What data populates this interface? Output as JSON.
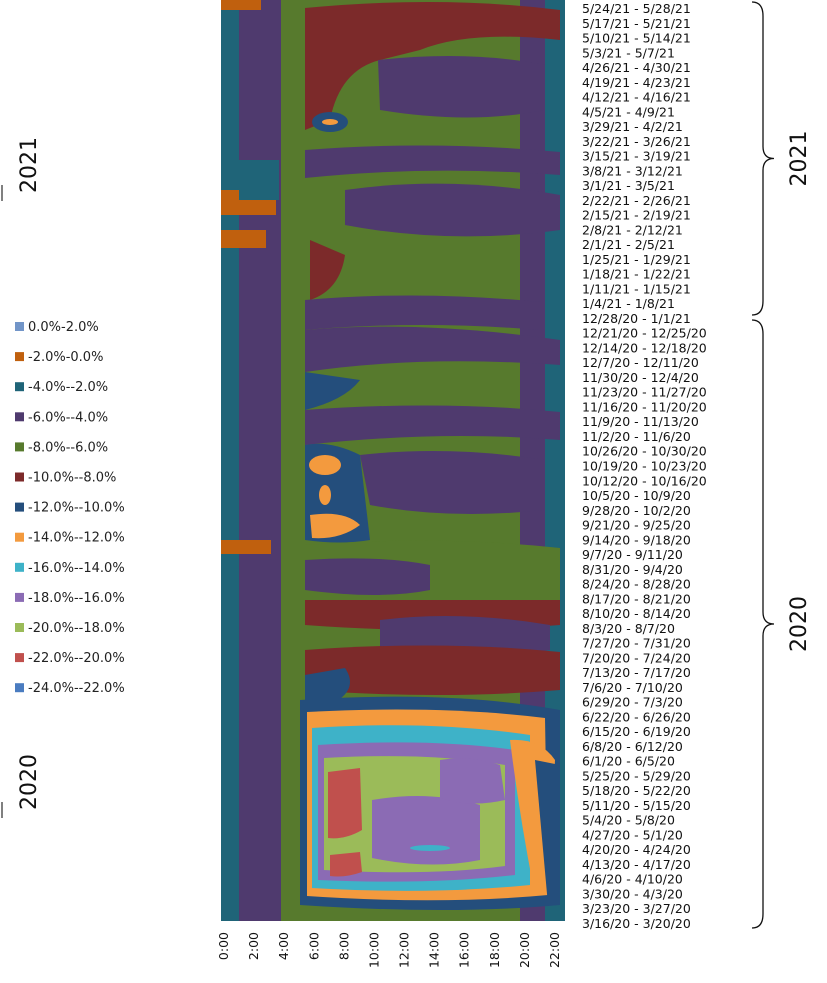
{
  "chart_data": {
    "type": "heatmap",
    "title": "",
    "xlabel": "",
    "ylabel": "",
    "x_ticks": [
      "0:00",
      "2:00",
      "4:00",
      "6:00",
      "8:00",
      "10:00",
      "12:00",
      "14:00",
      "16:00",
      "18:00",
      "20:00",
      "22:00"
    ],
    "y_ticks": [
      "5/24/21 - 5/28/21",
      "5/17/21 - 5/21/21",
      "5/10/21 - 5/14/21",
      "5/3/21 - 5/7/21",
      "4/26/21 - 4/30/21",
      "4/19/21 - 4/23/21",
      "4/12/21 - 4/16/21",
      "4/5/21 - 4/9/21",
      "3/29/21 - 4/2/21",
      "3/22/21 - 3/26/21",
      "3/15/21 - 3/19/21",
      "3/8/21 - 3/12/21",
      "3/1/21 - 3/5/21",
      "2/22/21 - 2/26/21",
      "2/15/21 - 2/19/21",
      "2/8/21 - 2/12/21",
      "2/1/21 - 2/5/21",
      "1/25/21 - 1/29/21",
      "1/18/21 - 1/22/21",
      "1/11/21 - 1/15/21",
      "1/4/21 - 1/8/21",
      "12/28/20 - 1/1/21",
      "12/21/20 - 12/25/20",
      "12/14/20 - 12/18/20",
      "12/7/20 - 12/11/20",
      "11/30/20 - 12/4/20",
      "11/23/20 - 11/27/20",
      "11/16/20 - 11/20/20",
      "11/9/20 - 11/13/20",
      "11/2/20 - 11/6/20",
      "10/26/20 - 10/30/20",
      "10/19/20 - 10/23/20",
      "10/12/20 - 10/16/20",
      "10/5/20 - 10/9/20",
      "9/28/20 - 10/2/20",
      "9/21/20 - 9/25/20",
      "9/14/20 - 9/18/20",
      "9/7/20 - 9/11/20",
      "8/31/20 - 9/4/20",
      "8/24/20 - 8/28/20",
      "8/17/20 - 8/21/20",
      "8/10/20 - 8/14/20",
      "8/3/20 - 8/7/20",
      "7/27/20 - 7/31/20",
      "7/20/20 - 7/24/20",
      "7/13/20 - 7/17/20",
      "7/6/20 - 7/10/20",
      "6/29/20 - 7/3/20",
      "6/22/20 - 6/26/20",
      "6/15/20 - 6/19/20",
      "6/8/20 - 6/12/20",
      "6/1/20 - 6/5/20",
      "5/25/20 - 5/29/20",
      "5/18/20 - 5/22/20",
      "5/11/20 - 5/15/20",
      "5/4/20 - 5/8/20",
      "4/27/20 - 5/1/20",
      "4/20/20 - 4/24/20",
      "4/13/20 - 4/17/20",
      "4/6/20 - 4/10/20",
      "3/30/20 - 4/3/20",
      "3/23/20 - 3/27/20",
      "3/16/20 - 3/20/20"
    ],
    "legend_position": "left",
    "legend": [
      {
        "label": "0.0%-2.0%",
        "color": "#7295c8"
      },
      {
        "label": "-2.0%-0.0%",
        "color": "#c0600e"
      },
      {
        "label": "-4.0%--2.0%",
        "color": "#1f6478"
      },
      {
        "label": "-6.0%--4.0%",
        "color": "#4f3a6e"
      },
      {
        "label": "-8.0%--6.0%",
        "color": "#577a2d"
      },
      {
        "label": "-10.0%--8.0%",
        "color": "#7c2a2a"
      },
      {
        "label": "-12.0%--10.0%",
        "color": "#244e7c"
      },
      {
        "label": "-14.0%--12.0%",
        "color": "#f39a3e"
      },
      {
        "label": "-16.0%--14.0%",
        "color": "#3eb2c8"
      },
      {
        "label": "-18.0%--16.0%",
        "color": "#8b6bb4"
      },
      {
        "label": "-20.0%--18.0%",
        "color": "#9bbb59"
      },
      {
        "label": "-22.0%--20.0%",
        "color": "#c0504d"
      },
      {
        "label": "-24.0%--22.0%",
        "color": "#4a7cc0"
      }
    ],
    "groups": [
      {
        "label": "2021"
      },
      {
        "label": "2020"
      }
    ]
  }
}
